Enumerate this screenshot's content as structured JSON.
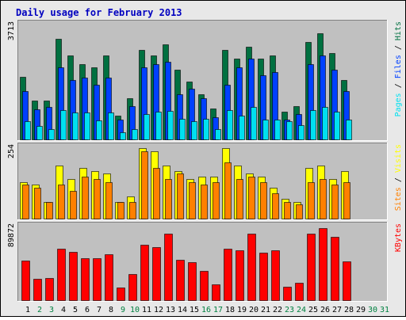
{
  "colors": {
    "background": "#e8e8e8",
    "plot_bg": "#c0c0c0",
    "title": "#0000c0",
    "hits": "#007040",
    "files": "#0040ff",
    "pages": "#00e0f0",
    "visits": "#ffff00",
    "sites": "#ff8000",
    "kbytes": "#ff0000",
    "weekday_label": "#000000",
    "weekend_label": "#008040",
    "scale_text": "#000000"
  },
  "chart_data": {
    "type": "bar",
    "title": "Daily usage for February 2013",
    "categories": [
      "1",
      "2",
      "3",
      "4",
      "5",
      "6",
      "7",
      "8",
      "9",
      "10",
      "11",
      "12",
      "13",
      "14",
      "15",
      "16",
      "17",
      "18",
      "19",
      "20",
      "21",
      "22",
      "23",
      "24",
      "25",
      "26",
      "27",
      "28",
      "29",
      "30",
      "31"
    ],
    "weekend_days": [
      "2",
      "3",
      "9",
      "10",
      "16",
      "17",
      "23",
      "24",
      "30",
      "31"
    ],
    "panels": [
      {
        "name": "hits-files-pages",
        "ymax_label": "3713",
        "ylim": [
          0,
          3713
        ],
        "right_legend": [
          {
            "text": "Pages",
            "color_key": "pages"
          },
          {
            "text": " / ",
            "color_key": "scale_text"
          },
          {
            "text": "Files",
            "color_key": "files"
          },
          {
            "text": " / ",
            "color_key": "scale_text"
          },
          {
            "text": "Hits",
            "color_key": "hits"
          }
        ],
        "series": [
          {
            "name": "Hits",
            "color_key": "hits",
            "values": [
              2020,
              1245,
              1245,
              3250,
              2710,
              2430,
              2340,
              2710,
              780,
              1330,
              2900,
              2710,
              3070,
              2250,
              1860,
              1460,
              990,
              2900,
              2620,
              2990,
              2620,
              2710,
              890,
              1070,
              3160,
              3440,
              2800,
              1930,
              0,
              0,
              0
            ]
          },
          {
            "name": "Files",
            "color_key": "files",
            "values": [
              1550,
              980,
              1040,
              2340,
              1930,
              2000,
              1760,
              2000,
              650,
              1070,
              2340,
              2430,
              2520,
              1460,
              1640,
              1330,
              710,
              1760,
              2340,
              2620,
              2080,
              2170,
              650,
              830,
              2430,
              2710,
              2250,
              1550,
              0,
              0,
              0
            ]
          },
          {
            "name": "Pages",
            "color_key": "pages",
            "values": [
              600,
              440,
              340,
              950,
              870,
              880,
              610,
              860,
              230,
              340,
              820,
              900,
              930,
              660,
              600,
              670,
              330,
              950,
              760,
              1060,
              640,
              630,
              600,
              450,
              960,
              1060,
              900,
              630,
              0,
              0,
              0
            ]
          }
        ]
      },
      {
        "name": "visits-sites",
        "ymax_label": "254",
        "ylim": [
          0,
          254
        ],
        "right_legend": [
          {
            "text": "Sites",
            "color_key": "sites"
          },
          {
            "text": " / ",
            "color_key": "scale_text"
          },
          {
            "text": "Visits",
            "color_key": "visits"
          }
        ],
        "series": [
          {
            "name": "Visits",
            "color_key": "visits",
            "values": [
              130,
              120,
              60,
              190,
              140,
              180,
              170,
              160,
              60,
              80,
              250,
              240,
              190,
              170,
              140,
              150,
              150,
              250,
              190,
              160,
              150,
              110,
              70,
              60,
              180,
              190,
              140,
              170,
              0,
              0,
              0
            ]
          },
          {
            "name": "Sites",
            "color_key": "sites",
            "values": [
              120,
              110,
              60,
              120,
              100,
              150,
              140,
              130,
              60,
              60,
              240,
              180,
              140,
              160,
              130,
              120,
              130,
              200,
              140,
              150,
              130,
              90,
              60,
              50,
              130,
              140,
              120,
              130,
              0,
              0,
              0
            ]
          }
        ]
      },
      {
        "name": "kbytes",
        "ymax_label": "89872",
        "ylim": [
          0,
          89872
        ],
        "right_legend": [
          {
            "text": "KBytes",
            "color_key": "kbytes"
          }
        ],
        "series": [
          {
            "name": "KBytes",
            "color_key": "kbytes",
            "values": [
              48000,
              26000,
              27000,
              63000,
              59000,
              51000,
              51000,
              56000,
              15000,
              32000,
              68000,
              65000,
              81000,
              49000,
              46000,
              36000,
              19000,
              63000,
              61000,
              81000,
              58000,
              61000,
              16000,
              21000,
              81000,
              88000,
              77000,
              47000,
              0,
              0,
              0
            ]
          }
        ]
      }
    ]
  }
}
